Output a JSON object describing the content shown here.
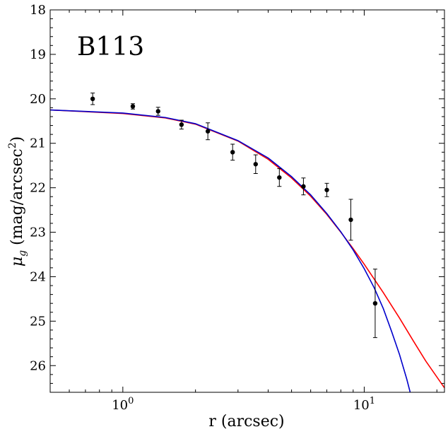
{
  "chart_data": {
    "type": "scatter",
    "title": "B113",
    "xlabel": "r (arcsec)",
    "ylabel_parts": {
      "main": "μ",
      "sub": "g",
      "rest": " (mag/arcsec",
      "sup": "2",
      "close": ")"
    },
    "xscale": "log",
    "xlim": [
      0.5,
      21.5
    ],
    "ylim": [
      26.6,
      18.0
    ],
    "y_inverted": true,
    "x_major_ticks": [
      {
        "value": 1,
        "label_base": "10",
        "label_exp": "0"
      },
      {
        "value": 10,
        "label_base": "10",
        "label_exp": "1"
      }
    ],
    "y_ticks": [
      18,
      19,
      20,
      21,
      22,
      23,
      24,
      25,
      26
    ],
    "y_tick_labels": [
      "18",
      "19",
      "20",
      "21",
      "22",
      "23",
      "24",
      "25",
      "26"
    ],
    "points": [
      {
        "x": 0.75,
        "y": 20.0,
        "err": 0.13
      },
      {
        "x": 1.1,
        "y": 20.17,
        "err": 0.06
      },
      {
        "x": 1.4,
        "y": 20.28,
        "err": 0.09
      },
      {
        "x": 1.75,
        "y": 20.58,
        "err": 0.1
      },
      {
        "x": 2.25,
        "y": 20.73,
        "err": 0.19
      },
      {
        "x": 2.85,
        "y": 21.2,
        "err": 0.18
      },
      {
        "x": 3.55,
        "y": 21.47,
        "err": 0.21
      },
      {
        "x": 4.45,
        "y": 21.77,
        "err": 0.2
      },
      {
        "x": 5.6,
        "y": 21.97,
        "err": 0.19
      },
      {
        "x": 7.0,
        "y": 22.05,
        "err": 0.15
      },
      {
        "x": 8.8,
        "y": 22.72,
        "err": 0.46
      },
      {
        "x": 11.1,
        "y": 24.6,
        "err": 0.77
      }
    ],
    "series": [
      {
        "color": "#ff0000",
        "points": [
          [
            0.5,
            20.25
          ],
          [
            1.0,
            20.33
          ],
          [
            1.5,
            20.43
          ],
          [
            2.0,
            20.57
          ],
          [
            3.0,
            20.95
          ],
          [
            4.0,
            21.36
          ],
          [
            5.0,
            21.78
          ],
          [
            6.0,
            22.19
          ],
          [
            7.0,
            22.6
          ],
          [
            8.0,
            23.0
          ],
          [
            9.0,
            23.37
          ],
          [
            10.0,
            23.72
          ],
          [
            12.0,
            24.36
          ],
          [
            14.0,
            24.93
          ],
          [
            16.0,
            25.45
          ],
          [
            18.0,
            25.9
          ],
          [
            21.5,
            26.5
          ]
        ]
      },
      {
        "color": "#0000cc",
        "points": [
          [
            0.5,
            20.25
          ],
          [
            1.0,
            20.32
          ],
          [
            1.5,
            20.42
          ],
          [
            2.0,
            20.56
          ],
          [
            3.0,
            20.94
          ],
          [
            4.0,
            21.33
          ],
          [
            5.0,
            21.75
          ],
          [
            6.0,
            22.16
          ],
          [
            7.0,
            22.58
          ],
          [
            8.0,
            22.99
          ],
          [
            9.0,
            23.4
          ],
          [
            10.0,
            23.82
          ],
          [
            11.0,
            24.25
          ],
          [
            12.0,
            24.72
          ],
          [
            13.0,
            25.24
          ],
          [
            14.0,
            25.75
          ],
          [
            15.0,
            26.3
          ],
          [
            15.5,
            26.6
          ]
        ]
      }
    ]
  }
}
